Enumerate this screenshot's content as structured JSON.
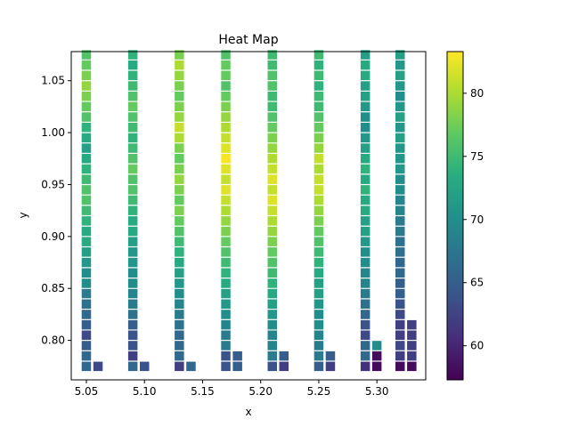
{
  "chart_data": {
    "type": "heatmap",
    "title": "Heat Map",
    "xlabel": "x",
    "ylabel": "y",
    "xlim": [
      5.037,
      5.342
    ],
    "ylim": [
      0.762,
      1.078
    ],
    "x_ticks": [
      "5.05",
      "5.10",
      "5.15",
      "5.20",
      "5.25",
      "5.30"
    ],
    "y_ticks": [
      "0.80",
      "0.85",
      "0.90",
      "0.95",
      "1.00",
      "1.05"
    ],
    "colorbar": {
      "min": 57.3,
      "max": 83.3,
      "ticks": [
        "60",
        "65",
        "70",
        "75",
        "80"
      ],
      "colormap": "viridis"
    },
    "y_start": 0.775,
    "y_step": 0.01,
    "columns": [
      {
        "x": 5.05,
        "values": [
          66,
          66,
          65,
          63,
          65,
          66,
          67,
          68,
          70,
          70,
          71,
          72,
          73,
          73,
          74,
          75,
          76,
          76,
          75,
          74,
          73,
          72,
          73,
          74,
          76,
          77,
          78,
          79,
          78,
          77,
          76
        ]
      },
      {
        "x": 5.09,
        "values": [
          66,
          62,
          64,
          64,
          65,
          67,
          68,
          69,
          70,
          70,
          71,
          71,
          72,
          73,
          73,
          74,
          75,
          76,
          76,
          77,
          76,
          75,
          74,
          75,
          76,
          77,
          76,
          75,
          74,
          73,
          74
        ]
      },
      {
        "x": 5.13,
        "values": [
          62,
          66,
          66,
          66,
          67,
          68,
          69,
          70,
          71,
          72,
          73,
          74,
          75,
          76,
          77,
          78,
          77,
          78,
          79,
          78,
          77,
          78,
          80,
          81,
          79,
          78,
          77,
          78,
          79,
          80,
          78
        ]
      },
      {
        "x": 5.17,
        "values": [
          64,
          64,
          68,
          68,
          69,
          70,
          71,
          72,
          73,
          74,
          75,
          76,
          77,
          78,
          79,
          80,
          81,
          82,
          81,
          82,
          83,
          82,
          81,
          80,
          79,
          78,
          77,
          76,
          77,
          77,
          76
        ]
      },
      {
        "x": 5.21,
        "values": [
          64,
          68,
          69,
          69,
          70,
          71,
          72,
          73,
          74,
          75,
          76,
          77,
          78,
          79,
          80,
          81,
          82,
          81,
          82,
          81,
          80,
          79,
          78,
          77,
          76,
          75,
          75,
          76,
          76,
          75,
          75
        ]
      },
      {
        "x": 5.25,
        "values": [
          65,
          68,
          68,
          69,
          70,
          70,
          71,
          72,
          72,
          73,
          74,
          75,
          76,
          77,
          78,
          79,
          80,
          81,
          81,
          80,
          81,
          79,
          78,
          77,
          76,
          75,
          75,
          74,
          75,
          74,
          75
        ]
      },
      {
        "x": 5.29,
        "values": [
          61,
          66,
          66,
          63,
          64,
          66,
          67,
          68,
          69,
          69,
          70,
          70,
          71,
          72,
          72,
          73,
          73,
          74,
          73,
          74,
          73,
          72,
          71,
          70,
          70,
          71,
          72,
          72,
          73,
          73,
          72
        ]
      },
      {
        "x": 5.32,
        "values": [
          58,
          62,
          63,
          62,
          62,
          63,
          64,
          65,
          65,
          66,
          66,
          67,
          67,
          68,
          68,
          69,
          69,
          70,
          70,
          71,
          71,
          71,
          72,
          71,
          72,
          71,
          70,
          71,
          72,
          71,
          72
        ]
      }
    ],
    "side_columns": [
      {
        "x": 5.06,
        "values": [
          63
        ]
      },
      {
        "x": 5.1,
        "values": [
          64
        ]
      },
      {
        "x": 5.14,
        "values": [
          66
        ]
      },
      {
        "x": 5.18,
        "values": [
          65,
          65
        ]
      },
      {
        "x": 5.22,
        "values": [
          62,
          65
        ]
      },
      {
        "x": 5.26,
        "values": [
          62,
          65
        ]
      },
      {
        "x": 5.3,
        "values": [
          58,
          58,
          70
        ]
      },
      {
        "x": 5.33,
        "values": [
          58,
          62,
          62,
          62,
          62
        ]
      }
    ]
  }
}
